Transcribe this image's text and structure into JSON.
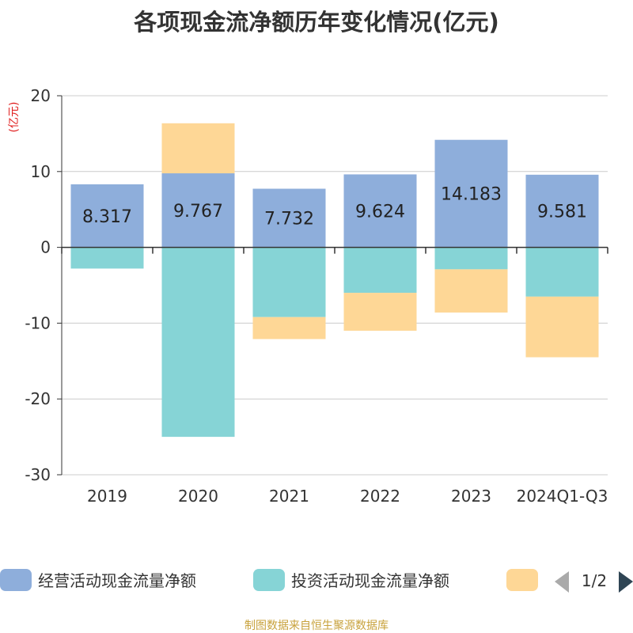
{
  "chart_data": {
    "type": "bar",
    "stacked": true,
    "title": "各项现金流净额历年变化情况(亿元)",
    "unit_label": "(亿元)",
    "categories": [
      "2019",
      "2020",
      "2021",
      "2022",
      "2023",
      "2024Q1-Q3"
    ],
    "series": [
      {
        "name": "经营活动现金流量净额",
        "color": "#8eaedb",
        "values": [
          8.317,
          9.767,
          7.732,
          9.624,
          14.183,
          9.581
        ],
        "labels": [
          "8.317",
          "9.767",
          "7.732",
          "9.624",
          "14.183",
          "9.581"
        ]
      },
      {
        "name": "投资活动现金流量净额",
        "color": "#86d4d6",
        "values": [
          -2.8,
          -25.0,
          -9.2,
          -6.0,
          -2.9,
          -6.5
        ]
      },
      {
        "name": "",
        "color": "#fed796",
        "values": [
          0,
          6.6,
          -2.9,
          -5.0,
          -5.7,
          -8.0
        ]
      }
    ],
    "y_ticks": [
      "20",
      "10",
      "0",
      "-10",
      "-20",
      "-30"
    ],
    "ylim": [
      -30,
      20
    ],
    "grid": true,
    "legend_position": "bottom",
    "legend_page": "1/2",
    "source": "制图数据来自恒生聚源数据库"
  }
}
